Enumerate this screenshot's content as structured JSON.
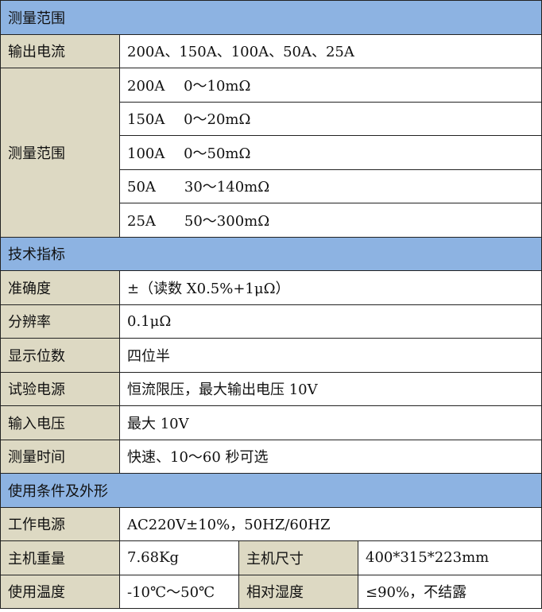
{
  "colors": {
    "section_header": "#8db3e2",
    "label_cell": "#ddd9c3"
  },
  "sections": [
    {
      "title": "测量范围",
      "rows": [
        {
          "label": "输出电流",
          "values": [
            "200A、150A、100A、50A、25A"
          ]
        },
        {
          "label": "测量范围",
          "values": [
            "200A　 0～10mΩ",
            "150A　 0～20mΩ",
            "100A　 0～50mΩ",
            "50A　　30～140mΩ",
            "25A　　50～300mΩ"
          ]
        }
      ]
    },
    {
      "title": "技术指标",
      "rows": [
        {
          "label": "准确度",
          "values": [
            "±（读数 X0.5%+1μΩ）"
          ]
        },
        {
          "label": "分辨率",
          "values": [
            "0.1μΩ"
          ]
        },
        {
          "label": "显示位数",
          "values": [
            "四位半"
          ]
        },
        {
          "label": "试验电源",
          "values": [
            "恒流限压，最大输出电压 10V"
          ]
        },
        {
          "label": "输入电压",
          "values": [
            "最大 10V"
          ]
        },
        {
          "label": "测量时间",
          "values": [
            "快速、10～60 秒可选"
          ]
        }
      ]
    },
    {
      "title": "使用条件及外形",
      "rows": [
        {
          "label": "工作电源",
          "values": [
            "AC220V±10%，50HZ/60HZ"
          ]
        },
        {
          "label": "主机重量",
          "values": [
            "7.68Kg"
          ],
          "label2": "主机尺寸",
          "values2": [
            "400*315*223mm"
          ]
        },
        {
          "label": "使用温度",
          "values": [
            "-10℃～50℃"
          ],
          "label2": "相对湿度",
          "values2": [
            "≤90%，不结露"
          ]
        }
      ]
    }
  ]
}
